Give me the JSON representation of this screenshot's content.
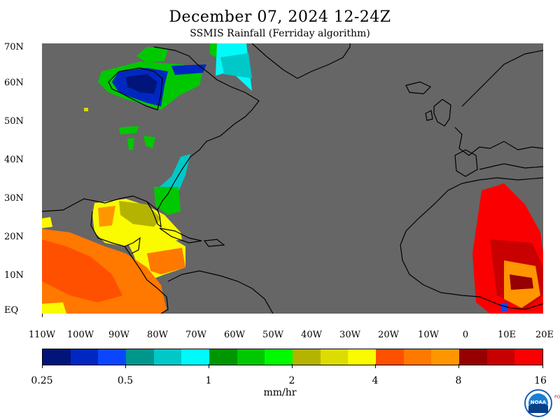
{
  "title": "December 07, 2024 12-24Z",
  "subtitle": "SSMIS Rainfall (Ferriday algorithm)",
  "lat_labels": [
    "70N",
    "60N",
    "50N",
    "40N",
    "30N",
    "20N",
    "10N",
    "EQ"
  ],
  "lon_labels": [
    "110W",
    "100W",
    "90W",
    "80W",
    "70W",
    "60W",
    "50W",
    "40W",
    "30W",
    "20W",
    "10W",
    "0",
    "10E",
    "20E"
  ],
  "colorbar": {
    "colors": [
      "#00147a",
      "#0028c0",
      "#0a46ff",
      "#00968c",
      "#00c8c8",
      "#00fafa",
      "#009600",
      "#00c800",
      "#00fa00",
      "#b4b400",
      "#dcdc00",
      "#fafa00",
      "#ff5000",
      "#ff7800",
      "#ff9600",
      "#960000",
      "#c80000",
      "#fa0000"
    ],
    "tick_labels": [
      "0.25",
      "0.5",
      "1",
      "2",
      "4",
      "8",
      "16"
    ],
    "units": "mm/hr"
  },
  "legend_colors": {
    "ocean": "#666666",
    "land_outline": "#000000"
  },
  "logo": {
    "icon": "noaa-logo-icon",
    "text": "NOAA",
    "side_text": "POL"
  }
}
